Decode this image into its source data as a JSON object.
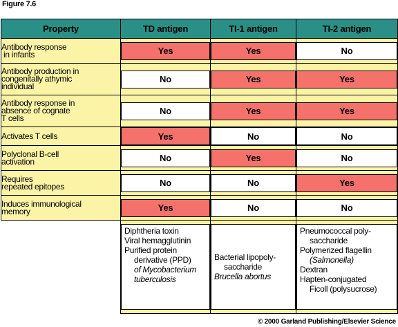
{
  "figure_label": "Figure 7.6",
  "headers": {
    "property": "Property",
    "td": "TD antigen",
    "ti1": "TI-1 antigen",
    "ti2": "TI-2 antigen"
  },
  "rows": [
    {
      "property": [
        "Antibody response",
        " in infants"
      ],
      "td": "Yes",
      "ti1": "Yes",
      "ti2": "No"
    },
    {
      "property": [
        "Antibody production in",
        "congenitally athymic",
        "individual"
      ],
      "td": "No",
      "ti1": "Yes",
      "ti2": "Yes"
    },
    {
      "property": [
        "Antibody response in",
        "absence of cognate",
        "T cells"
      ],
      "td": "No",
      "ti1": "Yes",
      "ti2": "Yes"
    },
    {
      "property": [
        "Activates T cells"
      ],
      "td": "Yes",
      "ti1": "No",
      "ti2": "No"
    },
    {
      "property": [
        "Polyclonal B-cell",
        "activation"
      ],
      "td": "No",
      "ti1": "Yes",
      "ti2": "No"
    },
    {
      "property": [
        "Requires",
        "repeated epitopes"
      ],
      "td": "No",
      "ti1": "No",
      "ti2": "Yes"
    },
    {
      "property": [
        "Induces immunological",
        "memory"
      ],
      "td": "Yes",
      "ti1": "No",
      "ti2": "No"
    }
  ],
  "examples": {
    "td": [
      "Diphtheria toxin",
      "Viral hemagglutinin",
      "Purified protein",
      "derivative (PPD)",
      "of Mycobacterium",
      "tuberculosis"
    ],
    "ti1": [
      "Bacterial lipopoly-",
      "saccharide",
      "Brucella abortus"
    ],
    "ti2": [
      "Pneumococcal poly-",
      "saccharide",
      "Polymerized flagellin",
      "(Salmonella)",
      "Dextran",
      "Hapten-conjugated",
      "Ficoll (polysucrose)"
    ]
  },
  "colors": {
    "header": "#2a8f86",
    "row_bg": "#fbf3a6",
    "yes": "#f5716b",
    "no": "#ffffff"
  },
  "copyright": "© 2000 Garland Publishing/Elsevier Science"
}
